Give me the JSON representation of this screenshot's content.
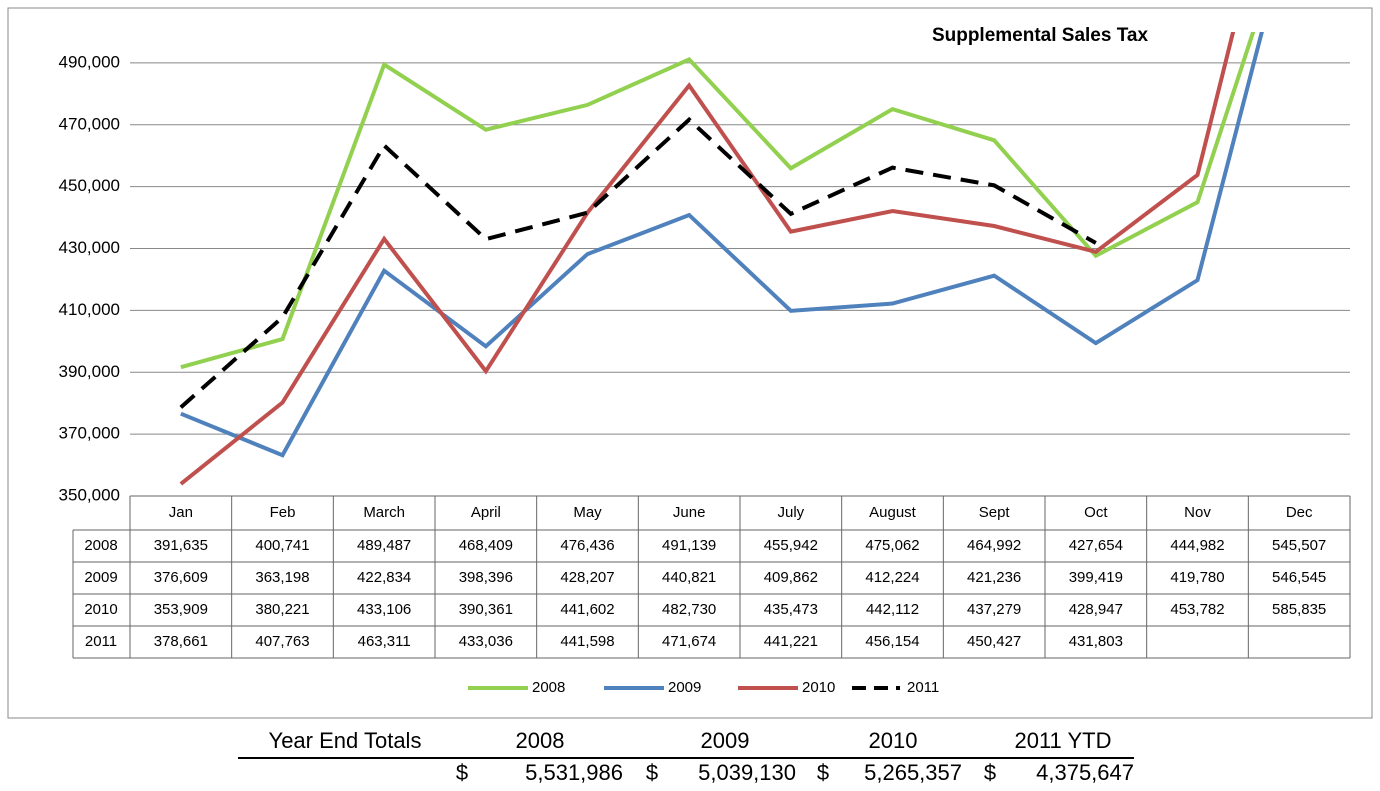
{
  "chart_data": {
    "type": "line",
    "title": "Supplemental Sales Tax",
    "categories": [
      "Jan",
      "Feb",
      "March",
      "April",
      "May",
      "June",
      "July",
      "August",
      "Sept",
      "Oct",
      "Nov",
      "Dec"
    ],
    "series": [
      {
        "name": "2008",
        "color": "#92d050",
        "dash": false,
        "values": [
          391635,
          400741,
          489487,
          468409,
          476436,
          491139,
          455942,
          475062,
          464992,
          427654,
          444982,
          545507
        ],
        "value_labels": [
          "391,635",
          "400,741",
          "489,487",
          "468,409",
          "476,436",
          "491,139",
          "455,942",
          "475,062",
          "464,992",
          "427,654",
          "444,982",
          "545,507"
        ]
      },
      {
        "name": "2009",
        "color": "#4f81bd",
        "dash": false,
        "values": [
          376609,
          363198,
          422834,
          398396,
          428207,
          440821,
          409862,
          412224,
          421236,
          399419,
          419780,
          546545
        ],
        "value_labels": [
          "376,609",
          "363,198",
          "422,834",
          "398,396",
          "428,207",
          "440,821",
          "409,862",
          "412,224",
          "421,236",
          "399,419",
          "419,780",
          "546,545"
        ]
      },
      {
        "name": "2010",
        "color": "#c0504d",
        "dash": false,
        "values": [
          353909,
          380221,
          433106,
          390361,
          441602,
          482730,
          435473,
          442112,
          437279,
          428947,
          453782,
          585835
        ],
        "value_labels": [
          "353,909",
          "380,221",
          "433,106",
          "390,361",
          "441,602",
          "482,730",
          "435,473",
          "442,112",
          "437,279",
          "428,947",
          "453,782",
          "585,835"
        ]
      },
      {
        "name": "2011",
        "color": "#000000",
        "dash": true,
        "values": [
          378661,
          407763,
          463311,
          433036,
          441598,
          471674,
          441221,
          456154,
          450427,
          431803,
          null,
          null
        ],
        "value_labels": [
          "378,661",
          "407,763",
          "463,311",
          "433,036",
          "441,598",
          "471,674",
          "441,221",
          "456,154",
          "450,427",
          "431,803",
          null,
          null
        ]
      }
    ],
    "ylim": [
      350000,
      500000
    ],
    "yticks": [
      {
        "value": 350000,
        "label": "350,000"
      },
      {
        "value": 370000,
        "label": "370,000"
      },
      {
        "value": 390000,
        "label": "390,000"
      },
      {
        "value": 410000,
        "label": "410,000"
      },
      {
        "value": 430000,
        "label": "430,000"
      },
      {
        "value": 450000,
        "label": "450,000"
      },
      {
        "value": 470000,
        "label": "470,000"
      },
      {
        "value": 490000,
        "label": "490,000"
      }
    ],
    "grid": true,
    "legend": "bottom",
    "totals": {
      "label": "Year End Totals",
      "currency": "$",
      "columns": [
        "2008",
        "2009",
        "2010",
        "2011 YTD"
      ],
      "values": [
        {
          "value": 5531986,
          "label": "5,531,986"
        },
        {
          "value": 5039130,
          "label": "5,039,130"
        },
        {
          "value": 5265357,
          "label": "5,265,357"
        },
        {
          "value": 4375647,
          "label": "4,375,647"
        }
      ]
    }
  }
}
